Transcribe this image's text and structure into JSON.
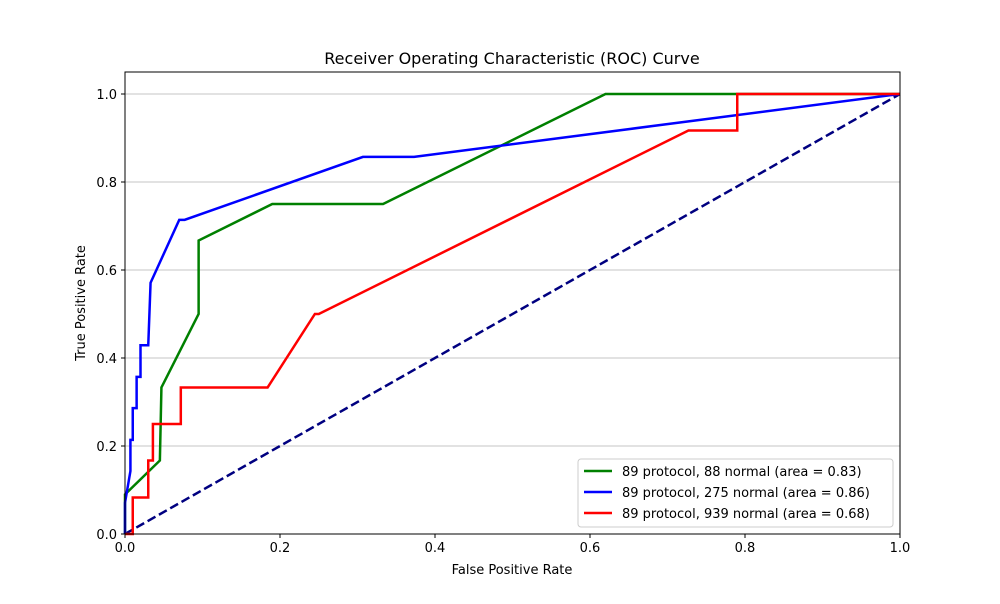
{
  "chart_data": {
    "type": "line",
    "title": "Receiver Operating Characteristic (ROC) Curve",
    "xlabel": "False Positive Rate",
    "ylabel": "True Positive Rate",
    "xlim": [
      0.0,
      1.0
    ],
    "ylim": [
      0.0,
      1.05
    ],
    "x_ticks": [
      0.0,
      0.2,
      0.4,
      0.6,
      0.8,
      1.0
    ],
    "y_ticks": [
      0.0,
      0.2,
      0.4,
      0.6,
      0.8,
      1.0
    ],
    "x_tick_labels": [
      "0.0",
      "0.2",
      "0.4",
      "0.6",
      "0.8",
      "1.0"
    ],
    "y_tick_labels": [
      "0.0",
      "0.2",
      "0.4",
      "0.6",
      "0.8",
      "1.0"
    ],
    "grid": "horizontal",
    "legend_position": "lower-right",
    "series": [
      {
        "name": "89 protocol, 88 normal (area = 0.83)",
        "color": "#008000",
        "points": [
          [
            0.0,
            0.0
          ],
          [
            0.0,
            0.083
          ],
          [
            0.0,
            0.09
          ],
          [
            0.045,
            0.167
          ],
          [
            0.047,
            0.333
          ],
          [
            0.095,
            0.5
          ],
          [
            0.095,
            0.667
          ],
          [
            0.19,
            0.75
          ],
          [
            0.333,
            0.75
          ],
          [
            0.62,
            1.0
          ],
          [
            1.0,
            1.0
          ]
        ]
      },
      {
        "name": "89 protocol, 275 normal (area = 0.86)",
        "color": "#0000ff",
        "points": [
          [
            0.0,
            0.0
          ],
          [
            0.0,
            0.071
          ],
          [
            0.007,
            0.143
          ],
          [
            0.007,
            0.214
          ],
          [
            0.01,
            0.214
          ],
          [
            0.01,
            0.286
          ],
          [
            0.015,
            0.286
          ],
          [
            0.015,
            0.357
          ],
          [
            0.02,
            0.357
          ],
          [
            0.02,
            0.429
          ],
          [
            0.03,
            0.429
          ],
          [
            0.033,
            0.571
          ],
          [
            0.07,
            0.714
          ],
          [
            0.077,
            0.714
          ],
          [
            0.307,
            0.857
          ],
          [
            0.373,
            0.857
          ],
          [
            1.0,
            1.0
          ]
        ]
      },
      {
        "name": "89 protocol, 939 normal (area = 0.68)",
        "color": "#ff0000",
        "points": [
          [
            0.0,
            0.0
          ],
          [
            0.01,
            0.0
          ],
          [
            0.01,
            0.083
          ],
          [
            0.03,
            0.083
          ],
          [
            0.03,
            0.167
          ],
          [
            0.036,
            0.167
          ],
          [
            0.036,
            0.25
          ],
          [
            0.072,
            0.25
          ],
          [
            0.072,
            0.333
          ],
          [
            0.184,
            0.333
          ],
          [
            0.245,
            0.5
          ],
          [
            0.25,
            0.5
          ],
          [
            0.727,
            0.917
          ],
          [
            0.79,
            0.917
          ],
          [
            0.79,
            1.0
          ],
          [
            1.0,
            1.0
          ]
        ]
      }
    ],
    "reference_line": {
      "color": "#000080",
      "style": "dashed",
      "points": [
        [
          0.0,
          0.0
        ],
        [
          1.0,
          1.0
        ]
      ]
    }
  }
}
